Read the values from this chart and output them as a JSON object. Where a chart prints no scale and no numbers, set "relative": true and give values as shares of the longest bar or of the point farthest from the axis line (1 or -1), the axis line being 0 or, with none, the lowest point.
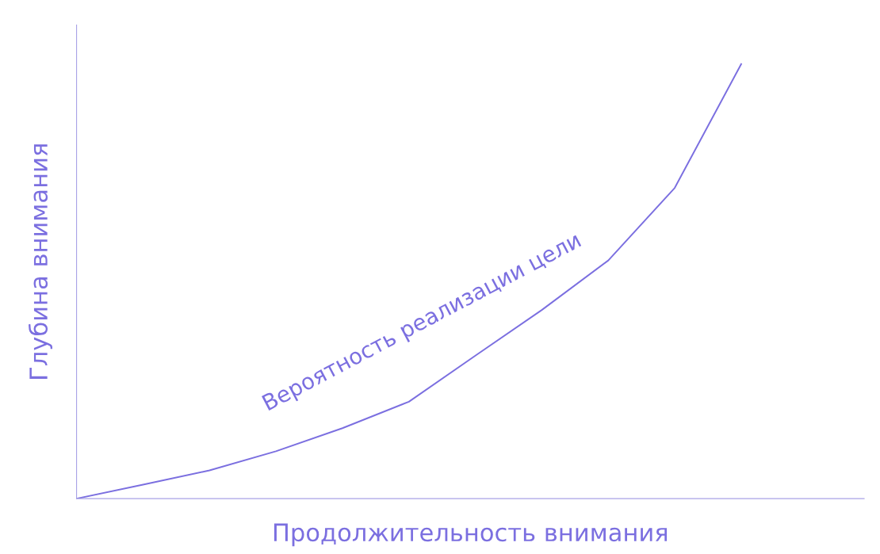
{
  "chart_data": {
    "type": "line",
    "relative": true,
    "xlabel": "Продолжительность внимания",
    "ylabel": "Глубина внимания",
    "categories": [
      null,
      null,
      null,
      null,
      null,
      null,
      null,
      null,
      null,
      null,
      null,
      null
    ],
    "series": [
      {
        "name": "Вероятность реализации цели",
        "color": "#7b6fe0",
        "values": [
          0,
          0.032,
          0.065,
          0.109,
          0.162,
          0.223,
          0.329,
          0.434,
          0.548,
          0.715,
          1,
          null
        ]
      }
    ],
    "legend": false,
    "marker": "none",
    "line_style": "solid"
  }
}
